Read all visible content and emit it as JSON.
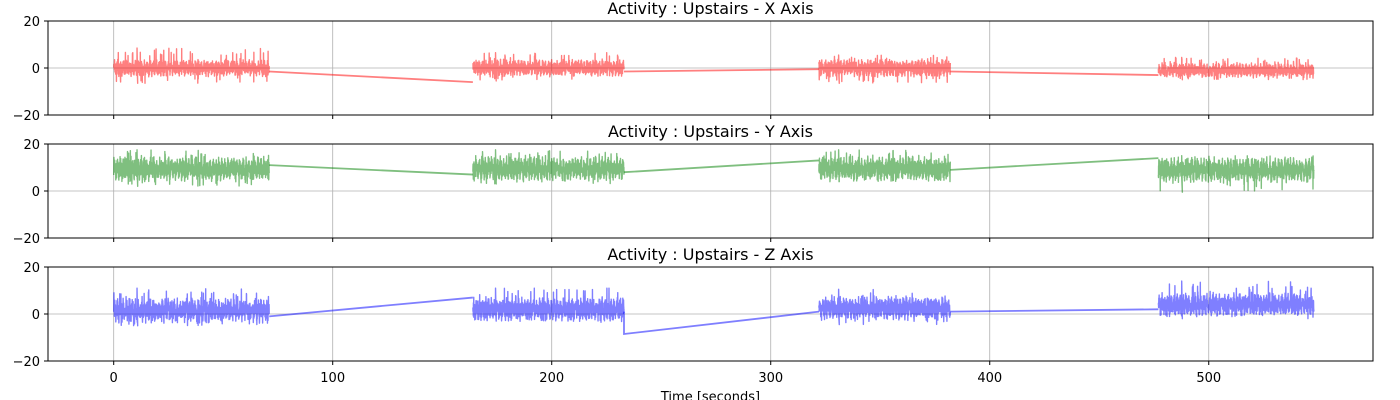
{
  "chart_data": [
    {
      "type": "line",
      "title": "Activity : Upstairs - X Axis",
      "xlabel": "",
      "ylabel": "",
      "xlim": [
        -30,
        575
      ],
      "ylim": [
        -20,
        20
      ],
      "xticks": [
        0,
        100,
        200,
        300,
        400,
        500
      ],
      "yticks": [
        -20,
        0,
        20
      ],
      "grid": true,
      "color": "#ff0000",
      "alpha": 0.5,
      "segments": [
        {
          "x_start": 0,
          "x_end": 71,
          "mean": 0,
          "amplitude": 3.5,
          "spike_max": 8.5,
          "spike_min": -6.5
        },
        {
          "x_start": 164,
          "x_end": 233,
          "mean": 0,
          "amplitude": 3.5,
          "spike_max": 6.5,
          "spike_min": -5.5
        },
        {
          "x_start": 322,
          "x_end": 382,
          "mean": 0,
          "amplitude": 3.5,
          "spike_max": 5.5,
          "spike_min": -6.5
        },
        {
          "x_start": 477,
          "x_end": 548,
          "mean": -1,
          "amplitude": 3,
          "spike_max": 4.5,
          "spike_min": -5
        }
      ],
      "connectors": [
        {
          "x": [
            71,
            164
          ],
          "y": [
            -1.5,
            -6
          ]
        },
        {
          "x": [
            233,
            322
          ],
          "y": [
            -1.5,
            -0.5
          ]
        },
        {
          "x": [
            382,
            477
          ],
          "y": [
            -1.5,
            -3
          ]
        }
      ]
    },
    {
      "type": "line",
      "title": "Activity : Upstairs - Y Axis",
      "xlabel": "",
      "ylabel": "",
      "xlim": [
        -30,
        575
      ],
      "ylim": [
        -20,
        20
      ],
      "xticks": [
        0,
        100,
        200,
        300,
        400,
        500
      ],
      "yticks": [
        -20,
        0,
        20
      ],
      "grid": true,
      "color": "#008000",
      "alpha": 0.5,
      "segments": [
        {
          "x_start": 0,
          "x_end": 71,
          "mean": 9.5,
          "amplitude": 5,
          "spike_max": 17.5,
          "spike_min": 2
        },
        {
          "x_start": 164,
          "x_end": 233,
          "mean": 9.5,
          "amplitude": 5,
          "spike_max": 17.5,
          "spike_min": 3
        },
        {
          "x_start": 322,
          "x_end": 382,
          "mean": 9.5,
          "amplitude": 5,
          "spike_max": 17.5,
          "spike_min": 4
        },
        {
          "x_start": 477,
          "x_end": 548,
          "mean": 9,
          "amplitude": 5,
          "spike_max": 15,
          "spike_min": -0.5
        }
      ],
      "connectors": [
        {
          "x": [
            71,
            164
          ],
          "y": [
            11,
            7
          ]
        },
        {
          "x": [
            233,
            322
          ],
          "y": [
            8,
            13
          ]
        },
        {
          "x": [
            382,
            477
          ],
          "y": [
            9,
            14
          ]
        }
      ]
    },
    {
      "type": "line",
      "title": "Activity : Upstairs - Z Axis",
      "xlabel": "Time [seconds]",
      "ylabel": "",
      "xlim": [
        -30,
        575
      ],
      "ylim": [
        -20,
        20
      ],
      "xticks": [
        0,
        100,
        200,
        300,
        400,
        500
      ],
      "yticks": [
        -20,
        0,
        20
      ],
      "grid": true,
      "color": "#0000ff",
      "alpha": 0.5,
      "segments": [
        {
          "x_start": 0,
          "x_end": 71,
          "mean": 1.5,
          "amplitude": 5,
          "spike_max": 11,
          "spike_min": -5
        },
        {
          "x_start": 164,
          "x_end": 233,
          "mean": 2,
          "amplitude": 5,
          "spike_max": 11,
          "spike_min": -3
        },
        {
          "x_start": 322,
          "x_end": 382,
          "mean": 2.5,
          "amplitude": 5,
          "spike_max": 10.5,
          "spike_min": -4.5
        },
        {
          "x_start": 477,
          "x_end": 548,
          "mean": 4,
          "amplitude": 5,
          "spike_max": 14,
          "spike_min": -2
        }
      ],
      "connectors": [
        {
          "x": [
            71,
            164
          ],
          "y": [
            -1,
            7
          ]
        },
        {
          "x": [
            233,
            233,
            322
          ],
          "y": [
            1,
            -8.5,
            1
          ]
        },
        {
          "x": [
            382,
            477
          ],
          "y": [
            1,
            2
          ]
        }
      ]
    }
  ]
}
